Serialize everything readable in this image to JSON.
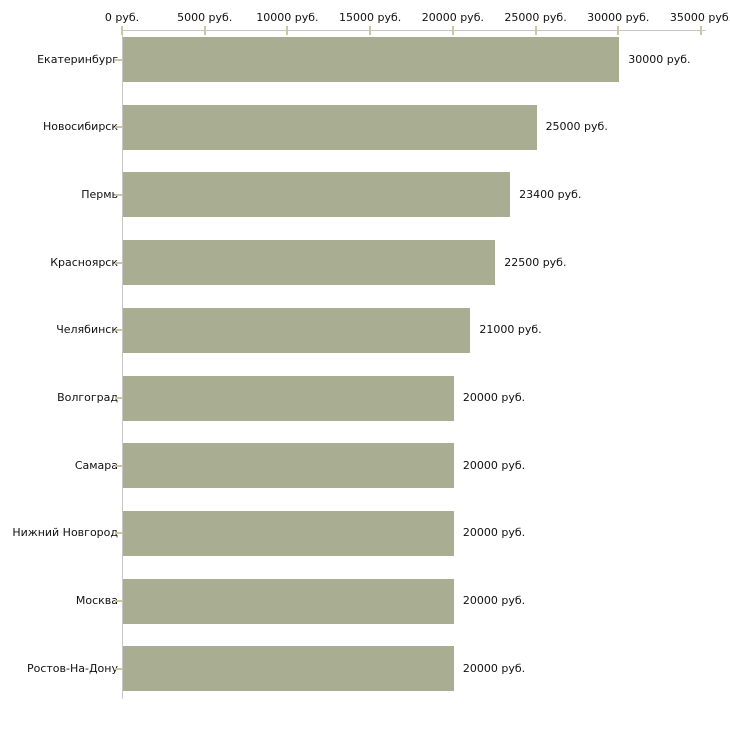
{
  "chart_data": {
    "type": "bar",
    "orientation": "horizontal",
    "title": "",
    "xlabel": "",
    "ylabel": "",
    "unit": "руб.",
    "xlim": [
      0,
      35000
    ],
    "grid": false,
    "legend": false,
    "categories": [
      "Екатеринбург",
      "Новосибирск",
      "Пермь",
      "Красноярск",
      "Челябинск",
      "Волгоград",
      "Самара",
      "Нижний Новгород",
      "Москва",
      "Ростов-На-Дону"
    ],
    "values": [
      30000,
      25000,
      23400,
      22500,
      21000,
      20000,
      20000,
      20000,
      20000,
      20000
    ],
    "value_labels": [
      "30000 руб.",
      "25000 руб.",
      "23400 руб.",
      "22500 руб.",
      "21000 руб.",
      "20000 руб.",
      "20000 руб.",
      "20000 руб.",
      "20000 руб.",
      "20000 руб."
    ],
    "x_ticks": [
      {
        "value": 0,
        "label": "0 руб."
      },
      {
        "value": 5000,
        "label": "5000 руб."
      },
      {
        "value": 10000,
        "label": "10000 руб."
      },
      {
        "value": 15000,
        "label": "15000 руб."
      },
      {
        "value": 20000,
        "label": "20000 руб."
      },
      {
        "value": 25000,
        "label": "25000 руб."
      },
      {
        "value": 30000,
        "label": "30000 руб."
      },
      {
        "value": 35000,
        "label": "35000 руб."
      }
    ],
    "colors": {
      "bar": "#a9ae93",
      "tick": "#c9c99b",
      "axis": "#c5c5c5",
      "text": "#111111",
      "background": "#ffffff"
    }
  }
}
